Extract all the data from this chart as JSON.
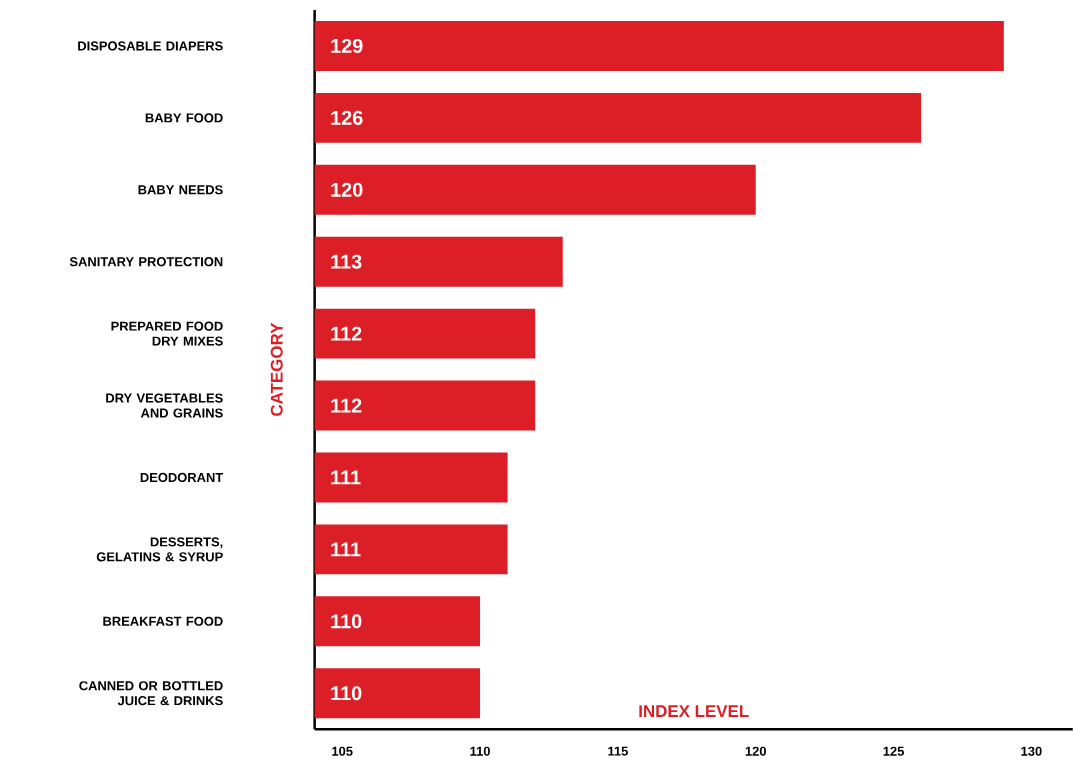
{
  "chart_data": {
    "type": "bar",
    "orientation": "horizontal",
    "xlabel": "INDEX LEVEL",
    "ylabel": "CATEGORY",
    "categories": [
      "DISPOSABLE DIAPERS",
      "BABY FOOD",
      "BABY NEEDS",
      "SANITARY PROTECTION",
      "PREPARED FOOD DRY MIXES",
      "DRY VEGETABLES AND GRAINS",
      "DEODORANT",
      "DESSERTS, GELATINS & SYRUP",
      "BREAKFAST FOOD",
      "CANNED OR BOTTLED JUICE & DRINKS"
    ],
    "values": [
      129,
      126,
      120,
      113,
      112,
      112,
      111,
      111,
      110,
      110
    ],
    "color": "#dc1f26",
    "data_labels": true,
    "xlim": [
      104,
      131.5
    ],
    "xticks": [
      105,
      110,
      115,
      120,
      125,
      130
    ]
  }
}
